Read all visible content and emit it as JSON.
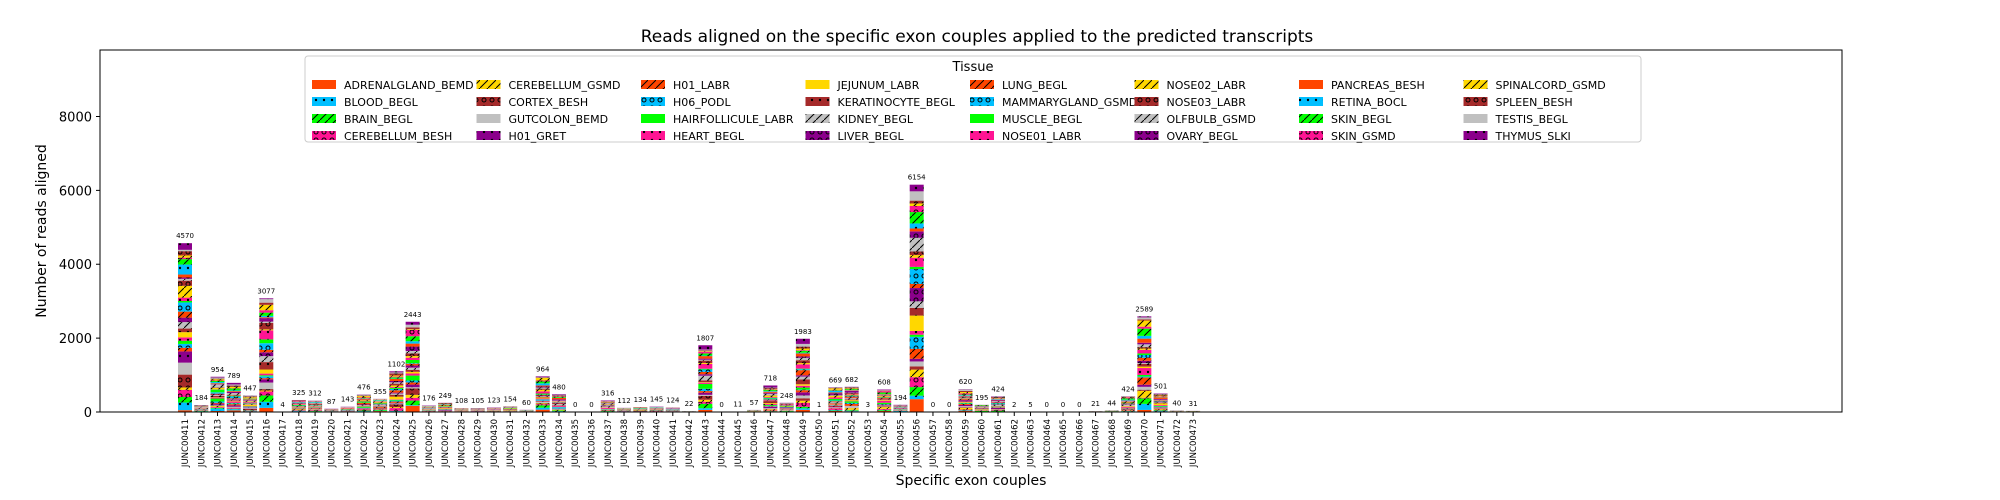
{
  "chart_data": {
    "type": "bar",
    "stacked": true,
    "title": "Reads aligned on the specific exon couples applied to the predicted transcripts",
    "xlabel": "Specific exon couples",
    "ylabel": "Number of reads aligned",
    "ylim": [
      0,
      9800
    ],
    "yticks": [
      0,
      2000,
      4000,
      6000,
      8000
    ],
    "grid": false,
    "legend": {
      "title": "Tissue",
      "placement": "top-center",
      "columns": 8
    },
    "categories": [
      "JUNC00411",
      "JUNC00412",
      "JUNC00413",
      "JUNC00414",
      "JUNC00415",
      "JUNC00416",
      "JUNC00417",
      "JUNC00418",
      "JUNC00419",
      "JUNC00420",
      "JUNC00421",
      "JUNC00422",
      "JUNC00423",
      "JUNC00424",
      "JUNC00425",
      "JUNC00426",
      "JUNC00427",
      "JUNC00428",
      "JUNC00429",
      "JUNC00430",
      "JUNC00431",
      "JUNC00432",
      "JUNC00433",
      "JUNC00434",
      "JUNC00435",
      "JUNC00436",
      "JUNC00437",
      "JUNC00438",
      "JUNC00439",
      "JUNC00440",
      "JUNC00441",
      "JUNC00442",
      "JUNC00443",
      "JUNC00444",
      "JUNC00445",
      "JUNC00446",
      "JUNC00447",
      "JUNC00448",
      "JUNC00449",
      "JUNC00450",
      "JUNC00451",
      "JUNC00452",
      "JUNC00453",
      "JUNC00454",
      "JUNC00455",
      "JUNC00456",
      "JUNC00457",
      "JUNC00458",
      "JUNC00459",
      "JUNC00460",
      "JUNC00461",
      "JUNC00462",
      "JUNC00463",
      "JUNC00464",
      "JUNC00465",
      "JUNC00466",
      "JUNC00467",
      "JUNC00468",
      "JUNC00469",
      "JUNC00470",
      "JUNC00471",
      "JUNC00472",
      "JUNC00473"
    ],
    "totals": [
      4570,
      184,
      954,
      789,
      447,
      3077,
      4,
      325,
      312,
      87,
      143,
      476,
      355,
      1102,
      2443,
      176,
      249,
      108,
      105,
      123,
      154,
      60,
      964,
      480,
      0,
      0,
      316,
      112,
      134,
      145,
      124,
      22,
      1807,
      0,
      11,
      57,
      718,
      248,
      1983,
      1,
      669,
      682,
      3,
      608,
      194,
      6154,
      0,
      0,
      620,
      195,
      424,
      2,
      5,
      0,
      0,
      0,
      21,
      44,
      424,
      2589,
      501,
      40,
      31
    ],
    "series": [
      {
        "name": "ADRENALGLAND_BEMD",
        "color": "#ff4500",
        "hatch": "none"
      },
      {
        "name": "BLOOD_BEGL",
        "color": "#00bfff",
        "hatch": "dot"
      },
      {
        "name": "BRAIN_BEGL",
        "color": "#00ff00",
        "hatch": "slash"
      },
      {
        "name": "CEREBELLUM_BESH",
        "color": "#ff1493",
        "hatch": "ring"
      },
      {
        "name": "CEREBELLUM_GSMD",
        "color": "#ffd700",
        "hatch": "slash"
      },
      {
        "name": "CORTEX_BESH",
        "color": "#a52a2a",
        "hatch": "ring"
      },
      {
        "name": "GUTCOLON_BEMD",
        "color": "#c0c0c0",
        "hatch": "none"
      },
      {
        "name": "H01_GRET",
        "color": "#8b008b",
        "hatch": "dot"
      },
      {
        "name": "H01_LABR",
        "color": "#ff4500",
        "hatch": "slash"
      },
      {
        "name": "H06_PODL",
        "color": "#00bfff",
        "hatch": "ring"
      },
      {
        "name": "HAIRFOLLICULE_LABR",
        "color": "#00ff00",
        "hatch": "none"
      },
      {
        "name": "HEART_BEGL",
        "color": "#ff1493",
        "hatch": "dot"
      },
      {
        "name": "JEJUNUM_LABR",
        "color": "#ffd700",
        "hatch": "none"
      },
      {
        "name": "KERATINOCYTE_BEGL",
        "color": "#a52a2a",
        "hatch": "dot"
      },
      {
        "name": "KIDNEY_BEGL",
        "color": "#c0c0c0",
        "hatch": "slash"
      },
      {
        "name": "LIVER_BEGL",
        "color": "#8b008b",
        "hatch": "ring"
      },
      {
        "name": "LUNG_BEGL",
        "color": "#ff4500",
        "hatch": "slash"
      },
      {
        "name": "MAMMARYGLAND_GSMD",
        "color": "#00bfff",
        "hatch": "ring"
      },
      {
        "name": "MUSCLE_BEGL",
        "color": "#00ff00",
        "hatch": "none"
      },
      {
        "name": "NOSE01_LABR",
        "color": "#ff1493",
        "hatch": "dot"
      },
      {
        "name": "NOSE02_LABR",
        "color": "#ffd700",
        "hatch": "slash"
      },
      {
        "name": "NOSE03_LABR",
        "color": "#a52a2a",
        "hatch": "ring"
      },
      {
        "name": "OLFBULB_GSMD",
        "color": "#c0c0c0",
        "hatch": "slash"
      },
      {
        "name": "OVARY_BEGL",
        "color": "#8b008b",
        "hatch": "ring"
      },
      {
        "name": "PANCREAS_BESH",
        "color": "#ff4500",
        "hatch": "none"
      },
      {
        "name": "RETINA_BOCL",
        "color": "#00bfff",
        "hatch": "dot"
      },
      {
        "name": "SKIN_BEGL",
        "color": "#00ff00",
        "hatch": "slash"
      },
      {
        "name": "SKIN_GSMD",
        "color": "#ff1493",
        "hatch": "ring"
      },
      {
        "name": "SPINALCORD_GSMD",
        "color": "#ffd700",
        "hatch": "slash"
      },
      {
        "name": "SPLEEN_BESH",
        "color": "#a52a2a",
        "hatch": "ring"
      },
      {
        "name": "TESTIS_BEGL",
        "color": "#c0c0c0",
        "hatch": "none"
      },
      {
        "name": "THYMUS_SLKI",
        "color": "#8b008b",
        "hatch": "dot"
      }
    ]
  }
}
